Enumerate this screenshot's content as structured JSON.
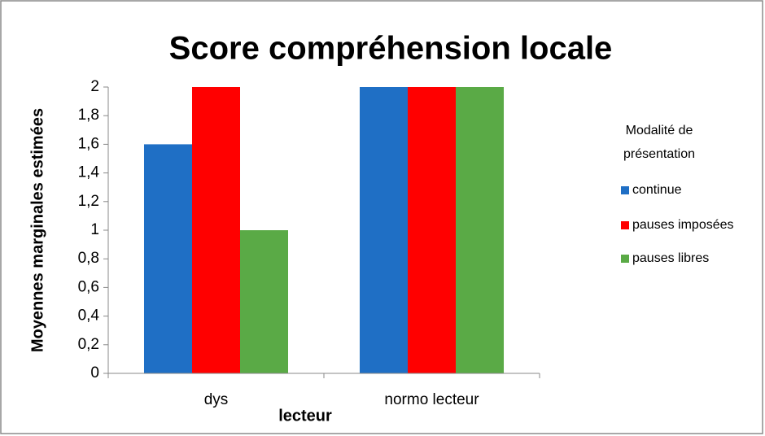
{
  "chart_data": {
    "type": "bar",
    "title": "Score compréhension locale",
    "y_label": "Moyennes marginales estimées",
    "x_label": "lecteur",
    "legend_title": "Modalité de présentation",
    "categories": [
      "dys",
      "normo lecteur"
    ],
    "series": [
      {
        "name": "continue",
        "color": "#1f6fc5",
        "values": [
          1.6,
          2
        ]
      },
      {
        "name": "pauses imposées",
        "color": "#ff0000",
        "values": [
          2,
          2
        ]
      },
      {
        "name": "pauses libres",
        "color": "#5aaa46",
        "values": [
          1,
          2
        ]
      }
    ],
    "ylim": [
      0,
      2
    ],
    "yticks": [
      0,
      {
        "value": 0.2,
        "label": "0,2"
      },
      {
        "value": 0.4,
        "label": "0,4"
      },
      {
        "value": 0.6,
        "label": "0,6"
      },
      {
        "value": 0.8,
        "label": "0,8"
      },
      1,
      {
        "value": 1.2,
        "label": "1,2"
      },
      {
        "value": 1.4,
        "label": "1,4"
      },
      {
        "value": 1.6,
        "label": "1,6"
      },
      {
        "value": 1.8,
        "label": "1,8"
      },
      2
    ],
    "legend": "right"
  }
}
